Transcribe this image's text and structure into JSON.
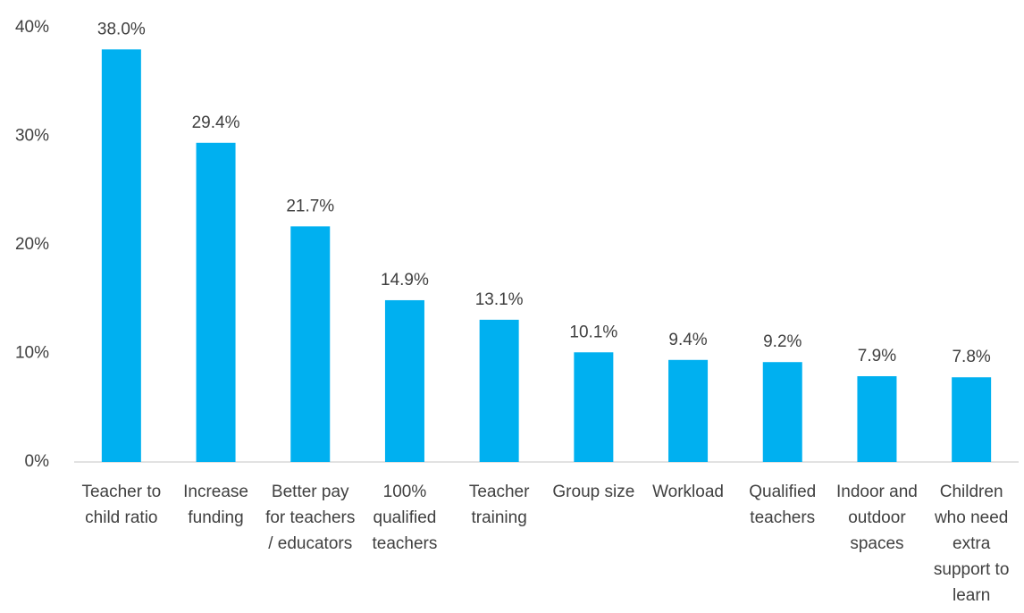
{
  "chart_data": {
    "type": "bar",
    "categories": [
      "Teacher to child ratio",
      "Increase funding",
      "Better pay for teachers / educators",
      "100% qualified teachers",
      "Teacher training",
      "Group size",
      "Workload",
      "Qualified teachers",
      "Indoor and outdoor spaces",
      "Children who need extra support to learn"
    ],
    "values": [
      38.0,
      29.4,
      21.7,
      14.9,
      13.1,
      10.1,
      9.4,
      9.2,
      7.9,
      7.8
    ],
    "value_labels": [
      "38.0%",
      "29.4%",
      "21.7%",
      "14.9%",
      "13.1%",
      "10.1%",
      "9.4%",
      "9.2%",
      "7.9%",
      "7.8%"
    ],
    "color": "#00b0f0",
    "ylim": [
      0,
      40
    ],
    "yticks": [
      {
        "value": 0,
        "label": "0%"
      },
      {
        "value": 10,
        "label": "10%"
      },
      {
        "value": 20,
        "label": "20%"
      },
      {
        "value": 30,
        "label": "30%"
      },
      {
        "value": 40,
        "label": "40%"
      }
    ],
    "grid": false
  }
}
